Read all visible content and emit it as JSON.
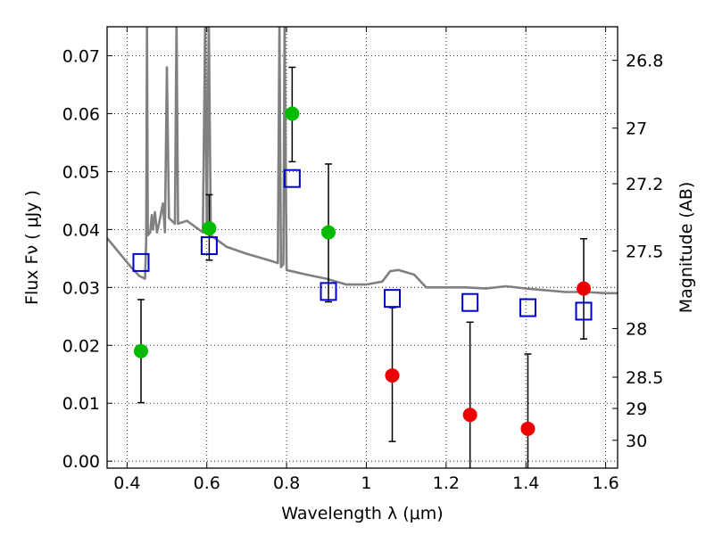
{
  "chart_data": {
    "type": "scatter",
    "xlabel": "Wavelength  λ (μm)",
    "ylabel": "Flux  Fν  ( μJy )",
    "y2label": "Magnitude (AB)",
    "xlim": [
      0.35,
      1.63
    ],
    "ylim": [
      -0.0012,
      0.075
    ],
    "grid": true,
    "x_ticks": [
      0.4,
      0.6,
      0.8,
      1.0,
      1.2,
      1.4,
      1.6
    ],
    "x_tick_labels": [
      "0.4",
      "0.6",
      "0.8",
      "1",
      "1.2",
      "1.4",
      "1.6"
    ],
    "y_ticks": [
      0.0,
      0.01,
      0.02,
      0.03,
      0.04,
      0.05,
      0.06,
      0.07
    ],
    "y_tick_labels": [
      "0.00",
      "0.01",
      "0.02",
      "0.03",
      "0.04",
      "0.05",
      "0.06",
      "0.07"
    ],
    "y2_ticks": [
      {
        "label": "26.8",
        "flux": 0.0692
      },
      {
        "label": "27",
        "flux": 0.0575
      },
      {
        "label": "27.2",
        "flux": 0.0479
      },
      {
        "label": "27.5",
        "flux": 0.0363
      },
      {
        "label": "28",
        "flux": 0.0229
      },
      {
        "label": "28.5",
        "flux": 0.0145
      },
      {
        "label": "29",
        "flux": 0.0091
      },
      {
        "label": "30",
        "flux": 0.0036
      }
    ],
    "colors": {
      "detection": "#00bb00",
      "nondetection": "#ee0000",
      "model": "#0000cc",
      "sed": "#808080"
    },
    "series": [
      {
        "marker": "filled-circle",
        "color": "#00bb00",
        "points": [
          {
            "x": 0.435,
            "y": 0.019,
            "ylo": 0.0101,
            "yhi": 0.0279
          },
          {
            "x": 0.606,
            "y": 0.0402,
            "ylo": 0.0347,
            "yhi": 0.046
          },
          {
            "x": 0.814,
            "y": 0.06,
            "ylo": 0.0517,
            "yhi": 0.068
          },
          {
            "x": 0.905,
            "y": 0.0395,
            "ylo": 0.0275,
            "yhi": 0.0513
          }
        ]
      },
      {
        "marker": "filled-circle",
        "color": "#ee0000",
        "points": [
          {
            "x": 1.065,
            "y": 0.0148,
            "ylo": 0.0034,
            "yhi": 0.0265
          },
          {
            "x": 1.26,
            "y": 0.008,
            "ylo": -0.0012,
            "yhi": 0.024
          },
          {
            "x": 1.405,
            "y": 0.0056,
            "ylo": -0.0012,
            "yhi": 0.0185
          },
          {
            "x": 1.545,
            "y": 0.0298,
            "ylo": 0.0211,
            "yhi": 0.0384
          }
        ]
      },
      {
        "marker": "open-square",
        "color": "#0000cc",
        "points": [
          {
            "x": 0.435,
            "y": 0.0343
          },
          {
            "x": 0.606,
            "y": 0.0372
          },
          {
            "x": 0.814,
            "y": 0.0488
          },
          {
            "x": 0.905,
            "y": 0.0293
          },
          {
            "x": 1.065,
            "y": 0.0281
          },
          {
            "x": 1.26,
            "y": 0.0274
          },
          {
            "x": 1.405,
            "y": 0.0265
          },
          {
            "x": 1.545,
            "y": 0.0259
          }
        ]
      }
    ],
    "sed_line": [
      [
        0.35,
        0.0385
      ],
      [
        0.38,
        0.036
      ],
      [
        0.41,
        0.0335
      ],
      [
        0.43,
        0.032
      ],
      [
        0.445,
        0.0315
      ],
      [
        0.448,
        0.038
      ],
      [
        0.45,
        0.076
      ],
      [
        0.452,
        0.039
      ],
      [
        0.458,
        0.0395
      ],
      [
        0.462,
        0.0425
      ],
      [
        0.465,
        0.04
      ],
      [
        0.47,
        0.043
      ],
      [
        0.475,
        0.0395
      ],
      [
        0.48,
        0.041
      ],
      [
        0.49,
        0.0445
      ],
      [
        0.495,
        0.0395
      ],
      [
        0.5,
        0.068
      ],
      [
        0.505,
        0.042
      ],
      [
        0.52,
        0.041
      ],
      [
        0.524,
        0.076
      ],
      [
        0.528,
        0.041
      ],
      [
        0.55,
        0.0415
      ],
      [
        0.57,
        0.0405
      ],
      [
        0.59,
        0.0395
      ],
      [
        0.596,
        0.076
      ],
      [
        0.6,
        0.0395
      ],
      [
        0.605,
        0.076
      ],
      [
        0.61,
        0.039
      ],
      [
        0.65,
        0.037
      ],
      [
        0.7,
        0.0358
      ],
      [
        0.75,
        0.0348
      ],
      [
        0.778,
        0.0342
      ],
      [
        0.782,
        0.076
      ],
      [
        0.786,
        0.0335
      ],
      [
        0.792,
        0.034
      ],
      [
        0.795,
        0.076
      ],
      [
        0.8,
        0.033
      ],
      [
        0.85,
        0.0322
      ],
      [
        0.9,
        0.0315
      ],
      [
        0.95,
        0.0305
      ],
      [
        1.0,
        0.0305
      ],
      [
        1.04,
        0.031
      ],
      [
        1.06,
        0.0328
      ],
      [
        1.08,
        0.033
      ],
      [
        1.12,
        0.0322
      ],
      [
        1.15,
        0.03
      ],
      [
        1.2,
        0.03
      ],
      [
        1.25,
        0.03
      ],
      [
        1.3,
        0.0298
      ],
      [
        1.35,
        0.0302
      ],
      [
        1.4,
        0.0298
      ],
      [
        1.45,
        0.0295
      ],
      [
        1.5,
        0.0292
      ],
      [
        1.55,
        0.0292
      ],
      [
        1.6,
        0.029
      ],
      [
        1.63,
        0.029
      ]
    ]
  }
}
